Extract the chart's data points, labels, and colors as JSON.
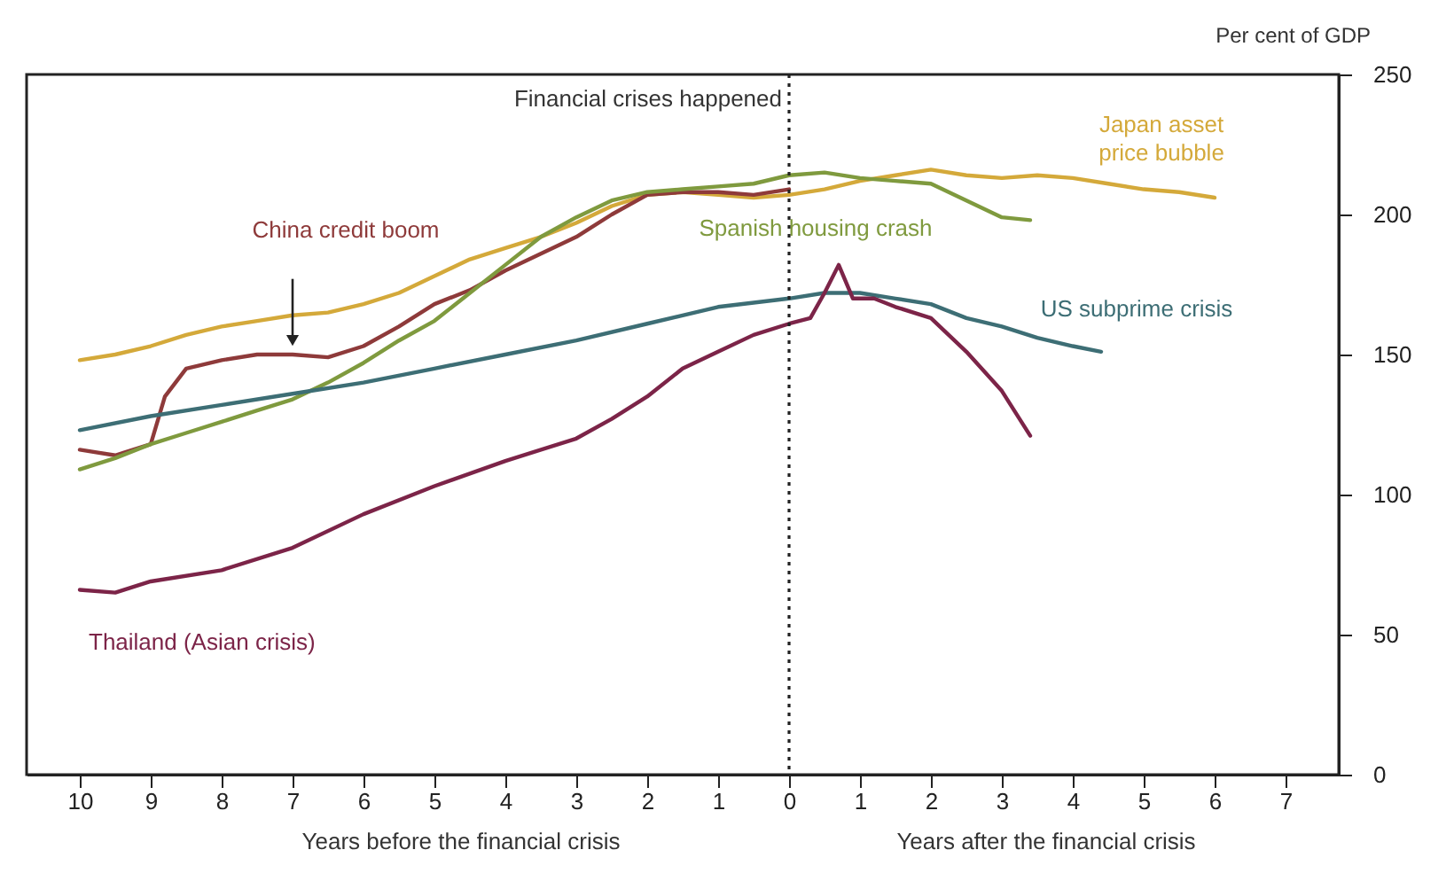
{
  "chart_data": {
    "type": "line",
    "ylabel": "Per cent of GDP",
    "xlim": [
      -10.75,
      7.75
    ],
    "ylim": [
      0,
      250
    ],
    "xticks": [
      {
        "value": -10,
        "label": "10"
      },
      {
        "value": -9,
        "label": "9"
      },
      {
        "value": -8,
        "label": "8"
      },
      {
        "value": -7,
        "label": "7"
      },
      {
        "value": -6,
        "label": "6"
      },
      {
        "value": -5,
        "label": "5"
      },
      {
        "value": -4,
        "label": "4"
      },
      {
        "value": -3,
        "label": "3"
      },
      {
        "value": -2,
        "label": "2"
      },
      {
        "value": -1,
        "label": "1"
      },
      0,
      1,
      2,
      3,
      4,
      5,
      6,
      7
    ],
    "yticks": [
      0,
      50,
      100,
      150,
      200,
      250
    ],
    "grid": false,
    "marker": "none",
    "line_style": "solid",
    "series": [
      {
        "name": "Japan asset price bubble",
        "color": "#d4a93a",
        "x": [
          -10,
          -9.5,
          -9,
          -8.5,
          -8,
          -7.5,
          -7,
          -6.5,
          -6,
          -5.5,
          -5,
          -4.5,
          -4,
          -3.5,
          -3,
          -2.5,
          -2,
          -1.5,
          -1,
          -0.5,
          0,
          0.5,
          1,
          1.5,
          2,
          2.5,
          3,
          3.5,
          4,
          4.5,
          5,
          5.5,
          6
        ],
        "values": [
          148,
          150,
          153,
          157,
          160,
          162,
          164,
          165,
          168,
          172,
          178,
          184,
          188,
          192,
          197,
          203,
          207,
          208,
          207,
          206,
          207,
          209,
          212,
          214,
          216,
          214,
          213,
          214,
          213,
          211,
          209,
          208,
          206
        ]
      },
      {
        "name": "China credit boom",
        "color": "#8e3a3a",
        "x": [
          -10,
          -9.5,
          -9,
          -8.8,
          -8.5,
          -8,
          -7.5,
          -7,
          -6.5,
          -6,
          -5.5,
          -5,
          -4.5,
          -4,
          -3.5,
          -3,
          -2.5,
          -2,
          -1.5,
          -1,
          -0.5,
          0
        ],
        "values": [
          116,
          114,
          118,
          135,
          145,
          148,
          150,
          150,
          149,
          153,
          160,
          168,
          173,
          180,
          186,
          192,
          200,
          207,
          208,
          208,
          207,
          209
        ]
      },
      {
        "name": "Spanish housing crash",
        "color": "#7f9a3e",
        "x": [
          -10,
          -9.5,
          -9,
          -8.5,
          -8,
          -7.5,
          -7,
          -6.5,
          -6,
          -5.5,
          -5,
          -4.5,
          -4,
          -3.5,
          -3,
          -2.5,
          -2,
          -1.5,
          -1,
          -0.5,
          0,
          0.5,
          1,
          1.5,
          2,
          2.5,
          3,
          3.4
        ],
        "values": [
          109,
          113,
          118,
          122,
          126,
          130,
          134,
          140,
          147,
          155,
          162,
          172,
          182,
          192,
          199,
          205,
          208,
          209,
          210,
          211,
          214,
          215,
          213,
          212,
          211,
          205,
          199,
          198
        ]
      },
      {
        "name": "US subprime crisis",
        "color": "#3d6e75",
        "x": [
          -10,
          -9,
          -8,
          -7,
          -6,
          -5,
          -4,
          -3,
          -2,
          -1,
          0,
          0.5,
          1,
          1.5,
          2,
          2.5,
          3,
          3.5,
          4,
          4.4
        ],
        "values": [
          123,
          128,
          132,
          136,
          140,
          145,
          150,
          155,
          161,
          167,
          170,
          172,
          172,
          170,
          168,
          163,
          160,
          156,
          153,
          151
        ]
      },
      {
        "name": "Thailand (Asian crisis)",
        "color": "#7c2448",
        "x": [
          -10,
          -9.5,
          -9,
          -8,
          -7,
          -6,
          -5,
          -4,
          -3,
          -2.5,
          -2,
          -1.5,
          -1,
          -0.5,
          0,
          0.3,
          0.5,
          0.7,
          0.9,
          1.2,
          1.5,
          2,
          2.5,
          3,
          3.4
        ],
        "values": [
          66,
          65,
          69,
          73,
          81,
          93,
          103,
          112,
          120,
          127,
          135,
          145,
          151,
          157,
          161,
          163,
          172,
          182,
          170,
          170,
          167,
          163,
          151,
          137,
          121
        ]
      }
    ],
    "ref_lines": [
      {
        "axis": "x",
        "value": 0,
        "label": "Financial crises happened",
        "line_style": "dotted",
        "color": "#222222"
      }
    ],
    "annotations": [
      "Years before the financial crisis",
      "Years after the financial crisis"
    ]
  }
}
